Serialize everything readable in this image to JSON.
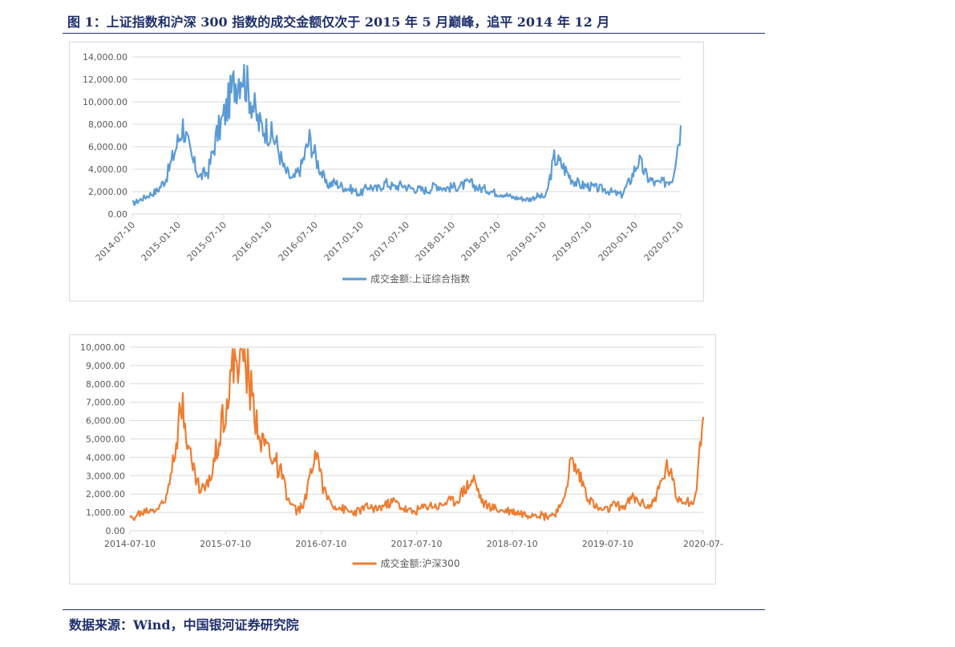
{
  "figure": {
    "title": "图 1：上证指数和沪深 300 指数的成交金额仅次于 2015 年 5 月巅峰，追平 2014 年 12 月",
    "source": "数据来源：Wind，中国银河证券研究院"
  },
  "colors": {
    "sh": "#5b9bd5",
    "hs": "#ed7d31",
    "grid": "#d9d9d9",
    "axis": "#595959",
    "navy": "#1f2f6b"
  },
  "chart_data": [
    {
      "type": "line",
      "title": "",
      "ylim": [
        0,
        14000
      ],
      "y_ticks": [
        0,
        2000,
        4000,
        6000,
        8000,
        10000,
        12000,
        14000
      ],
      "y_tick_labels": [
        "0.00",
        "2,000.00",
        "4,000.00",
        "6,000.00",
        "8,000.00",
        "10,000.00",
        "12,000.00",
        "14,000.00"
      ],
      "x_tick_labels": [
        "2014-07-10",
        "2015-01-10",
        "2015-07-10",
        "2016-01-10",
        "2016-07-10",
        "2017-01-10",
        "2017-07-10",
        "2018-01-10",
        "2018-07-10",
        "2019-01-10",
        "2019-07-10",
        "2020-01-10",
        "2020-07-10"
      ],
      "x_tick_rotation": "diagonal",
      "legend": "bottom-center",
      "series": [
        {
          "name": "成交金额:上证综合指数",
          "x": [
            0,
            0.2,
            0.4,
            0.6,
            0.8,
            1,
            1.2,
            1.4,
            1.6,
            1.8,
            2,
            2.2,
            2.4,
            2.6,
            2.8,
            3,
            3.2,
            3.4,
            3.6,
            3.8,
            4,
            4.2,
            4.4,
            4.6,
            4.8,
            5,
            5.2,
            5.4,
            5.6,
            5.8,
            6,
            6.2,
            6.4,
            6.6,
            6.8,
            7,
            7.2,
            7.4,
            7.6,
            7.8,
            8,
            8.2,
            8.4,
            8.6,
            8.8,
            9,
            9.2,
            9.4,
            9.6,
            9.8,
            10,
            10.2,
            10.4,
            10.6,
            10.8,
            11,
            11.2,
            11.4,
            11.6,
            11.8,
            12,
            12.2,
            12.4,
            12.6,
            12.8,
            13
          ],
          "values": [
            900,
            1300,
            1700,
            2100,
            3200,
            5500,
            7900,
            5000,
            3300,
            3800,
            7000,
            9000,
            11500,
            12800,
            10500,
            8000,
            7500,
            6500,
            4000,
            3000,
            4200,
            6700,
            4500,
            2600,
            2800,
            2400,
            2200,
            1800,
            2500,
            2200,
            2800,
            2400,
            2600,
            2300,
            2200,
            2100,
            2600,
            2300,
            2400,
            2500,
            2800,
            2300,
            2200,
            1900,
            1800,
            1500,
            1400,
            1300,
            1600,
            1500,
            5000,
            4300,
            3200,
            2600,
            2500,
            2300,
            2200,
            1900,
            1700,
            3000,
            4800,
            3300,
            2700,
            2800,
            3200,
            7900
          ]
        }
      ]
    },
    {
      "type": "line",
      "title": "",
      "ylim": [
        0,
        10000
      ],
      "y_ticks": [
        0,
        1000,
        2000,
        3000,
        4000,
        5000,
        6000,
        7000,
        8000,
        9000,
        10000
      ],
      "y_tick_labels": [
        "0.00",
        "1,000.00",
        "2,000.00",
        "3,000.00",
        "4,000.00",
        "5,000.00",
        "6,000.00",
        "7,000.00",
        "8,000.00",
        "9,000.00",
        "10,000.00"
      ],
      "x_tick_labels": [
        "2014-07-10",
        "2015-07-10",
        "2016-07-10",
        "2017-07-10",
        "2018-07-10",
        "2019-07-10",
        "2020-07-"
      ],
      "x_tick_rotation": "horizontal",
      "legend": "bottom-center",
      "series": [
        {
          "name": "成交金额:沪深300",
          "x": [
            0,
            0.2,
            0.4,
            0.6,
            0.8,
            1,
            1.2,
            1.4,
            1.6,
            1.8,
            2,
            2.2,
            2.4,
            2.6,
            2.8,
            3,
            3.2,
            3.4,
            3.6,
            3.8,
            4,
            4.2,
            4.4,
            4.6,
            4.8,
            5,
            5.2,
            5.4,
            5.6,
            5.8,
            6,
            6.2,
            6.4,
            6.6,
            6.8,
            7,
            7.2,
            7.4,
            7.6,
            7.8,
            8,
            8.2,
            8.4,
            8.6,
            8.8,
            9,
            9.2,
            9.4,
            9.6,
            9.8,
            10,
            10.2,
            10.4,
            10.6,
            10.8,
            11,
            11.2,
            11.4,
            11.6,
            11.8,
            12,
            12.2,
            12.4,
            12.6,
            12.8,
            13
          ],
          "values": [
            600,
            900,
            1100,
            1200,
            1600,
            4500,
            7000,
            3600,
            2200,
            2600,
            5000,
            7200,
            9400,
            9500,
            6700,
            5000,
            4200,
            3300,
            1600,
            1000,
            1800,
            4800,
            2100,
            1400,
            1200,
            1000,
            1100,
            1300,
            1200,
            1400,
            1600,
            1200,
            1000,
            1200,
            1400,
            1300,
            1600,
            1600,
            2300,
            2800,
            1500,
            1300,
            1100,
            1100,
            1000,
            900,
            1000,
            800,
            900,
            1300,
            3800,
            3000,
            1800,
            1200,
            1100,
            1400,
            1300,
            1800,
            1500,
            1300,
            2300,
            3600,
            1800,
            1700,
            1500,
            6200
          ]
        }
      ]
    }
  ]
}
